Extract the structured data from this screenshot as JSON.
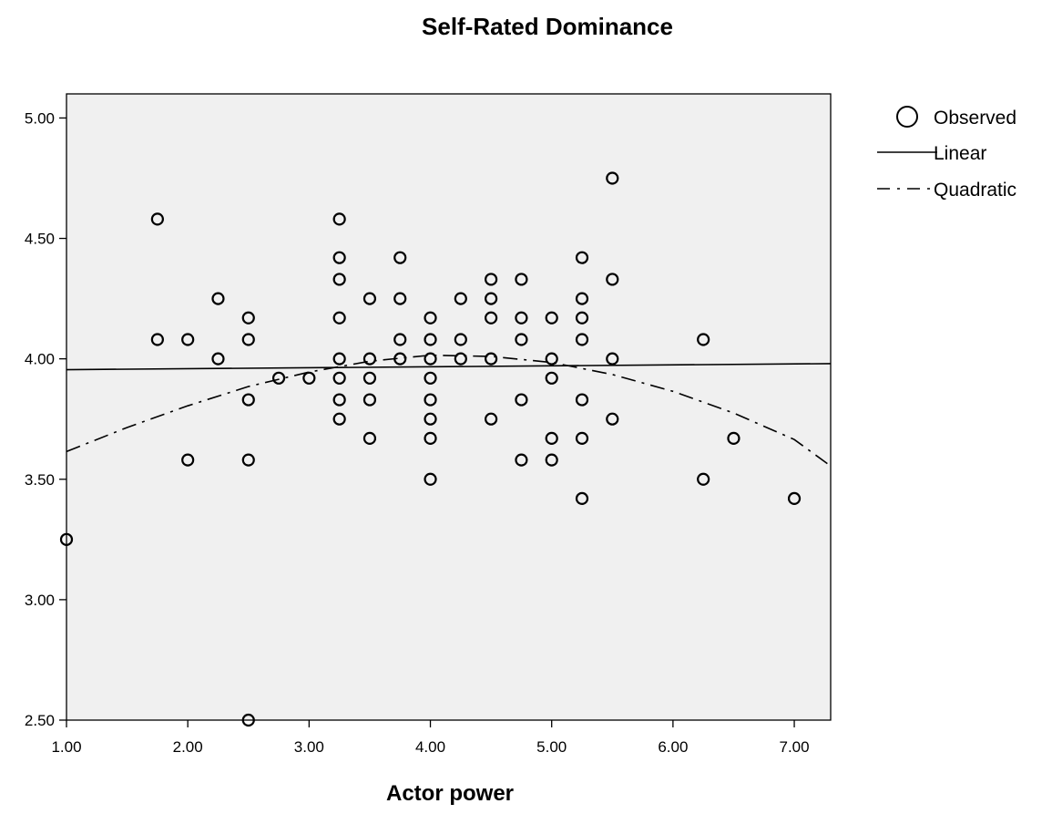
{
  "chart_data": {
    "type": "scatter",
    "title": "Self-Rated Dominance",
    "xlabel": "Actor power",
    "ylabel": "",
    "xlim": [
      1.0,
      7.3
    ],
    "ylim": [
      2.5,
      5.1
    ],
    "x_ticks": [
      "1.00",
      "2.00",
      "3.00",
      "4.00",
      "5.00",
      "6.00",
      "7.00"
    ],
    "y_ticks": [
      "2.50",
      "3.00",
      "3.50",
      "4.00",
      "4.50",
      "5.00"
    ],
    "x_tick_values": [
      1,
      2,
      3,
      4,
      5,
      6,
      7
    ],
    "y_tick_values": [
      2.5,
      3.0,
      3.5,
      4.0,
      4.5,
      5.0
    ],
    "grid": false,
    "legend_placement": "right",
    "legend": [
      {
        "label": "Observed",
        "symbol": "circle"
      },
      {
        "label": "Linear",
        "symbol": "solid-line"
      },
      {
        "label": "Quadratic",
        "symbol": "dash-dot-line"
      }
    ],
    "series": [
      {
        "name": "Observed",
        "kind": "points",
        "points": [
          [
            1.0,
            3.25
          ],
          [
            1.75,
            4.58
          ],
          [
            1.75,
            4.08
          ],
          [
            2.0,
            4.08
          ],
          [
            2.0,
            3.58
          ],
          [
            2.25,
            4.25
          ],
          [
            2.25,
            4.0
          ],
          [
            2.5,
            4.17
          ],
          [
            2.5,
            4.08
          ],
          [
            2.5,
            3.83
          ],
          [
            2.5,
            3.58
          ],
          [
            2.5,
            2.5
          ],
          [
            2.75,
            3.92
          ],
          [
            3.0,
            3.92
          ],
          [
            3.25,
            4.58
          ],
          [
            3.25,
            4.42
          ],
          [
            3.25,
            4.33
          ],
          [
            3.25,
            4.17
          ],
          [
            3.25,
            4.0
          ],
          [
            3.25,
            3.92
          ],
          [
            3.25,
            3.83
          ],
          [
            3.25,
            3.75
          ],
          [
            3.5,
            4.25
          ],
          [
            3.5,
            4.0
          ],
          [
            3.5,
            3.92
          ],
          [
            3.5,
            3.83
          ],
          [
            3.5,
            3.67
          ],
          [
            3.75,
            4.42
          ],
          [
            3.75,
            4.25
          ],
          [
            3.75,
            4.08
          ],
          [
            3.75,
            4.0
          ],
          [
            4.0,
            4.17
          ],
          [
            4.0,
            4.08
          ],
          [
            4.0,
            4.0
          ],
          [
            4.0,
            3.92
          ],
          [
            4.0,
            3.83
          ],
          [
            4.0,
            3.75
          ],
          [
            4.0,
            3.67
          ],
          [
            4.0,
            3.5
          ],
          [
            4.25,
            4.25
          ],
          [
            4.25,
            4.08
          ],
          [
            4.25,
            4.0
          ],
          [
            4.5,
            4.33
          ],
          [
            4.5,
            4.25
          ],
          [
            4.5,
            4.17
          ],
          [
            4.5,
            4.0
          ],
          [
            4.5,
            3.75
          ],
          [
            4.75,
            4.33
          ],
          [
            4.75,
            4.17
          ],
          [
            4.75,
            4.08
          ],
          [
            4.75,
            3.83
          ],
          [
            4.75,
            3.58
          ],
          [
            5.0,
            4.17
          ],
          [
            5.0,
            4.0
          ],
          [
            5.0,
            3.92
          ],
          [
            5.0,
            3.67
          ],
          [
            5.0,
            3.58
          ],
          [
            5.25,
            4.42
          ],
          [
            5.25,
            4.25
          ],
          [
            5.25,
            4.17
          ],
          [
            5.25,
            4.08
          ],
          [
            5.25,
            3.83
          ],
          [
            5.25,
            3.67
          ],
          [
            5.25,
            3.42
          ],
          [
            5.5,
            4.75
          ],
          [
            5.5,
            4.33
          ],
          [
            5.5,
            4.0
          ],
          [
            5.5,
            3.75
          ],
          [
            6.25,
            4.08
          ],
          [
            6.25,
            3.5
          ],
          [
            6.5,
            3.67
          ],
          [
            7.0,
            3.42
          ]
        ]
      },
      {
        "name": "Linear",
        "kind": "line",
        "points": [
          [
            1.0,
            3.955
          ],
          [
            7.3,
            3.98
          ]
        ]
      },
      {
        "name": "Quadratic",
        "kind": "dash-dot-line",
        "points": [
          [
            1.0,
            3.615
          ],
          [
            1.5,
            3.715
          ],
          [
            2.0,
            3.805
          ],
          [
            2.5,
            3.885
          ],
          [
            3.0,
            3.945
          ],
          [
            3.5,
            3.99
          ],
          [
            4.0,
            4.015
          ],
          [
            4.5,
            4.01
          ],
          [
            5.0,
            3.985
          ],
          [
            5.5,
            3.935
          ],
          [
            6.0,
            3.865
          ],
          [
            6.5,
            3.775
          ],
          [
            7.0,
            3.665
          ],
          [
            7.3,
            3.555
          ]
        ]
      }
    ]
  }
}
